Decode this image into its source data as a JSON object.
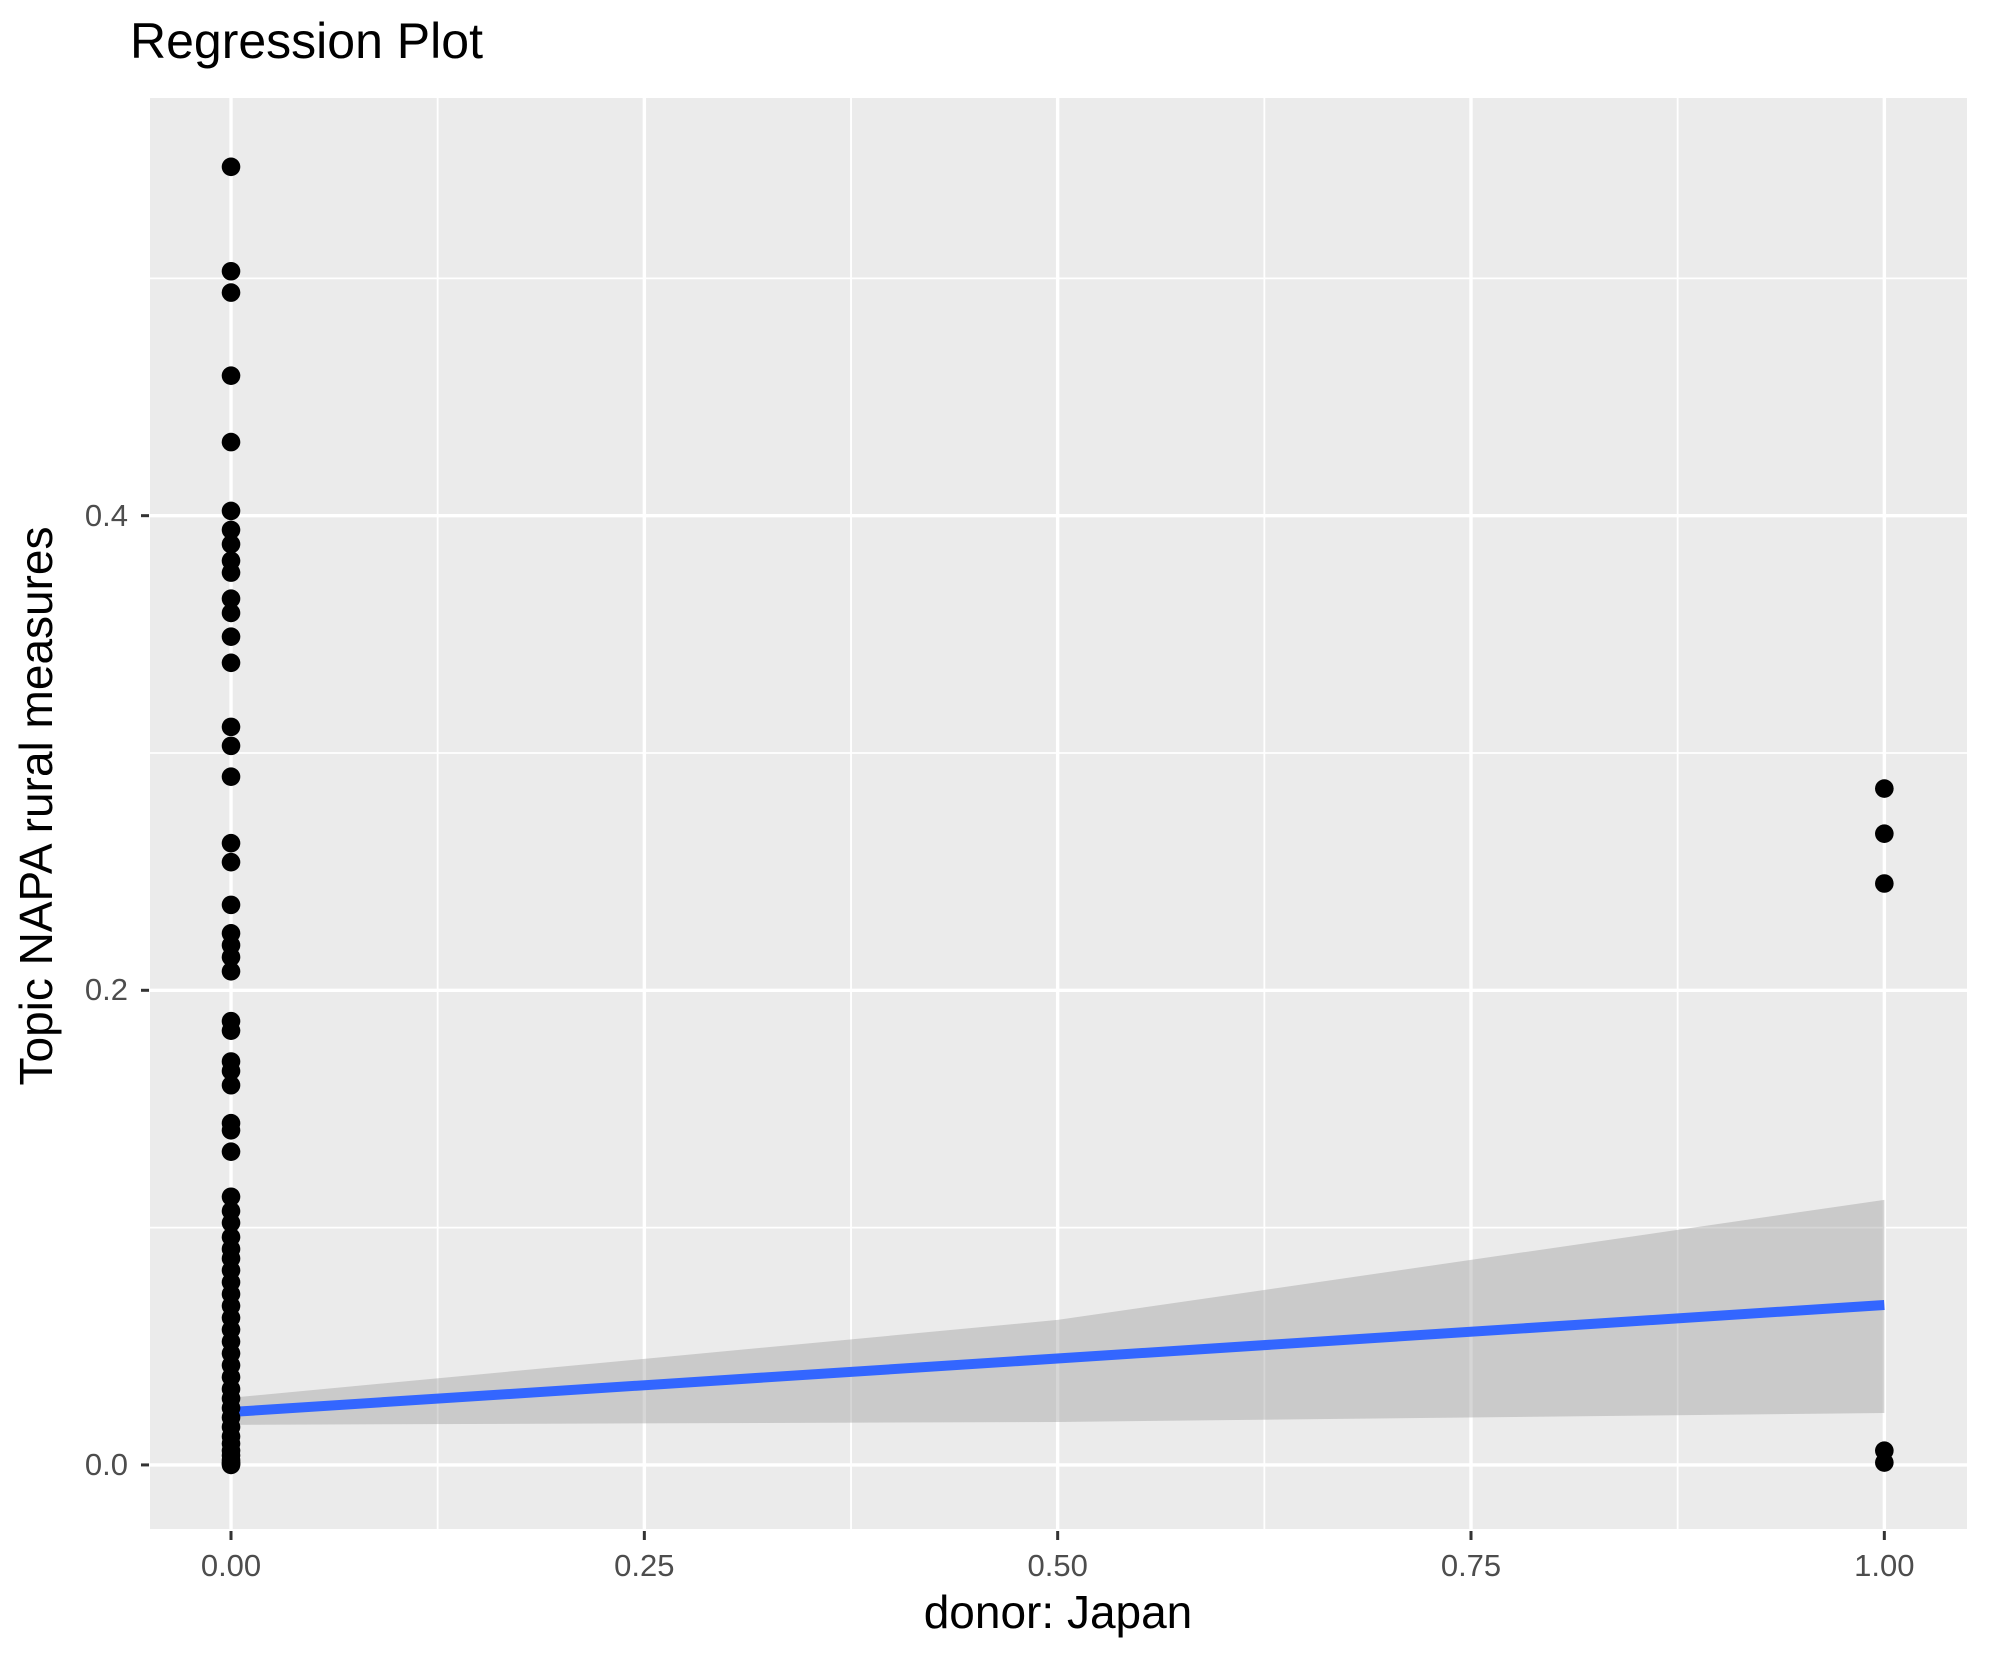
{
  "title": "Regression Plot",
  "chart_data": {
    "type": "scatter",
    "title": "Regression Plot",
    "xlabel": "donor: Japan",
    "ylabel": "Topic NAPA rural measures",
    "xlim": [
      -0.049,
      1.05
    ],
    "ylim": [
      -0.027,
      0.576
    ],
    "grid": true,
    "legend": "none",
    "panel_bg": "#EBEBEB",
    "grid_color": "#FFFFFF",
    "point_color": "#000000",
    "tick_label_color": "#4D4D4D",
    "tick_mark_color": "#333333",
    "line_color": "#3366FF",
    "band_color": "#999999",
    "band_opacity": 0.4,
    "x_ticks": {
      "values": [
        0,
        0.25,
        0.5,
        0.75,
        1.0
      ],
      "labels": [
        "0.00",
        "0.25",
        "0.50",
        "0.75",
        "1.00"
      ]
    },
    "y_ticks": {
      "values": [
        0,
        0.2,
        0.4
      ],
      "labels": [
        "0.0",
        "0.2",
        "0.4"
      ]
    },
    "x_minor": [
      0.125,
      0.375,
      0.625,
      0.875
    ],
    "y_minor": [
      0.1,
      0.3,
      0.5
    ],
    "series": [
      {
        "name": "donor = 0",
        "x": 0,
        "y": [
          0.547,
          0.503,
          0.494,
          0.459,
          0.431,
          0.402,
          0.394,
          0.388,
          0.381,
          0.376,
          0.365,
          0.359,
          0.349,
          0.338,
          0.311,
          0.303,
          0.29,
          0.262,
          0.254,
          0.236,
          0.224,
          0.219,
          0.214,
          0.208,
          0.187,
          0.183,
          0.17,
          0.166,
          0.16,
          0.144,
          0.141,
          0.132,
          0.113,
          0.107,
          0.102,
          0.096,
          0.091,
          0.087,
          0.082,
          0.077,
          0.072,
          0.067,
          0.062,
          0.057,
          0.052,
          0.047,
          0.042,
          0.037,
          0.032,
          0.028,
          0.024,
          0.02,
          0.016,
          0.012,
          0.009,
          0.006,
          0.004,
          0.002,
          0.001,
          0.0005,
          0.0
        ]
      },
      {
        "name": "donor = 1",
        "x": 1,
        "y": [
          0.285,
          0.266,
          0.245,
          0.006,
          0.001
        ]
      }
    ],
    "regression_line": {
      "x": [
        0,
        1
      ],
      "y": [
        0.0223,
        0.0674
      ]
    },
    "confidence_band": {
      "x": [
        0,
        0.5,
        1
      ],
      "upper": [
        0.0283,
        0.0611,
        0.1117
      ],
      "lower": [
        0.0169,
        0.0181,
        0.0219
      ]
    }
  }
}
